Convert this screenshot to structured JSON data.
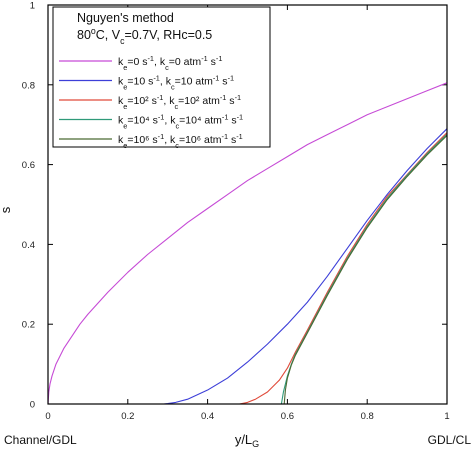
{
  "chart_data": {
    "type": "line",
    "title_line1": "Nguyen's method",
    "title_line2_parts": [
      {
        "t": "80"
      },
      {
        "t": "o",
        "sup": true
      },
      {
        "t": "C, V"
      },
      {
        "t": "c",
        "sub": true
      },
      {
        "t": "=0.7V, RHc=0.5"
      }
    ],
    "xlabel_main": "y/L",
    "xlabel_sub": "G",
    "ylabel": "s",
    "x_left_label": "Channel/GDL",
    "x_right_label": "GDL/CL",
    "xlim": [
      0,
      1
    ],
    "ylim": [
      0,
      1
    ],
    "x_ticks": [
      0,
      0.2,
      0.4,
      0.6,
      0.8,
      1
    ],
    "x_tick_labels": [
      "0",
      "0.2",
      "0.4",
      "0.6",
      "0.8",
      "1"
    ],
    "y_ticks": [
      0,
      0.2,
      0.4,
      0.6,
      0.8,
      1
    ],
    "y_tick_labels": [
      "0",
      "0.2",
      "0.4",
      "0.6",
      "0.8",
      "1"
    ],
    "legend_position": "top-left",
    "series": [
      {
        "color": "#c64bd6",
        "label_parts": [
          {
            "t": "k"
          },
          {
            "t": "e",
            "sub": true
          },
          {
            "t": "=0 s"
          },
          {
            "t": "-1",
            "sup": true
          },
          {
            "t": ", k"
          },
          {
            "t": "c",
            "sub": true
          },
          {
            "t": "=0 atm"
          },
          {
            "t": "-1",
            "sup": true
          },
          {
            "t": " s"
          },
          {
            "t": "-1",
            "sup": true
          }
        ],
        "x": [
          0,
          0.002,
          0.005,
          0.01,
          0.02,
          0.04,
          0.06,
          0.08,
          0.1,
          0.15,
          0.2,
          0.25,
          0.3,
          0.35,
          0.4,
          0.45,
          0.5,
          0.55,
          0.6,
          0.65,
          0.7,
          0.75,
          0.8,
          0.85,
          0.9,
          0.95,
          1.0
        ],
        "y": [
          0,
          0.03,
          0.05,
          0.07,
          0.1,
          0.14,
          0.17,
          0.2,
          0.225,
          0.28,
          0.33,
          0.375,
          0.415,
          0.455,
          0.49,
          0.525,
          0.56,
          0.59,
          0.62,
          0.65,
          0.675,
          0.7,
          0.725,
          0.745,
          0.765,
          0.785,
          0.805
        ]
      },
      {
        "color": "#3d3fd8",
        "label_parts": [
          {
            "t": "k"
          },
          {
            "t": "e",
            "sub": true
          },
          {
            "t": "=10 s"
          },
          {
            "t": "-1",
            "sup": true
          },
          {
            "t": ", k"
          },
          {
            "t": "c",
            "sub": true
          },
          {
            "t": "=10 atm"
          },
          {
            "t": "-1",
            "sup": true
          },
          {
            "t": " s"
          },
          {
            "t": "-1",
            "sup": true
          }
        ],
        "x": [
          0,
          0.29,
          0.3,
          0.32,
          0.35,
          0.4,
          0.45,
          0.5,
          0.55,
          0.6,
          0.65,
          0.7,
          0.75,
          0.8,
          0.85,
          0.9,
          0.95,
          1.0
        ],
        "y": [
          0,
          0,
          0.001,
          0.004,
          0.012,
          0.035,
          0.065,
          0.105,
          0.15,
          0.2,
          0.255,
          0.32,
          0.39,
          0.46,
          0.525,
          0.585,
          0.64,
          0.69
        ]
      },
      {
        "color": "#e04a3a",
        "label_parts": [
          {
            "t": "k"
          },
          {
            "t": "e",
            "sub": true
          },
          {
            "t": "=10² s"
          },
          {
            "t": "-1",
            "sup": true
          },
          {
            "t": ", k"
          },
          {
            "t": "c",
            "sub": true
          },
          {
            "t": "=10² atm"
          },
          {
            "t": "-1",
            "sup": true
          },
          {
            "t": " s"
          },
          {
            "t": "-1",
            "sup": true
          }
        ],
        "x": [
          0,
          0.48,
          0.5,
          0.52,
          0.55,
          0.58,
          0.6,
          0.62,
          0.65,
          0.7,
          0.75,
          0.8,
          0.85,
          0.9,
          0.95,
          1.0
        ],
        "y": [
          0,
          0,
          0.004,
          0.012,
          0.03,
          0.06,
          0.09,
          0.13,
          0.185,
          0.28,
          0.37,
          0.45,
          0.52,
          0.575,
          0.63,
          0.68
        ]
      },
      {
        "color": "#2f9a79",
        "label_parts": [
          {
            "t": "k"
          },
          {
            "t": "e",
            "sub": true
          },
          {
            "t": "=10⁴ s"
          },
          {
            "t": "-1",
            "sup": true
          },
          {
            "t": ", k"
          },
          {
            "t": "c",
            "sub": true
          },
          {
            "t": "=10⁴ atm"
          },
          {
            "t": "-1",
            "sup": true
          },
          {
            "t": " s"
          },
          {
            "t": "-1",
            "sup": true
          }
        ],
        "x": [
          0,
          0.585,
          0.59,
          0.6,
          0.61,
          0.62,
          0.65,
          0.7,
          0.75,
          0.8,
          0.85,
          0.9,
          0.95,
          1.0
        ],
        "y": [
          0,
          0,
          0.03,
          0.07,
          0.1,
          0.125,
          0.18,
          0.275,
          0.365,
          0.445,
          0.515,
          0.573,
          0.627,
          0.676
        ]
      },
      {
        "color": "#4a6a33",
        "label_parts": [
          {
            "t": "k"
          },
          {
            "t": "e",
            "sub": true
          },
          {
            "t": "=10⁶ s"
          },
          {
            "t": "-1",
            "sup": true
          },
          {
            "t": ", k"
          },
          {
            "t": "c",
            "sub": true
          },
          {
            "t": "=10⁶ atm"
          },
          {
            "t": "-1",
            "sup": true
          },
          {
            "t": " s"
          },
          {
            "t": "-1",
            "sup": true
          }
        ],
        "x": [
          0,
          0.592,
          0.595,
          0.6,
          0.61,
          0.62,
          0.65,
          0.7,
          0.75,
          0.8,
          0.85,
          0.9,
          0.95,
          1.0
        ],
        "y": [
          0,
          0,
          0.035,
          0.065,
          0.098,
          0.122,
          0.178,
          0.272,
          0.362,
          0.442,
          0.512,
          0.57,
          0.624,
          0.673
        ]
      }
    ]
  }
}
